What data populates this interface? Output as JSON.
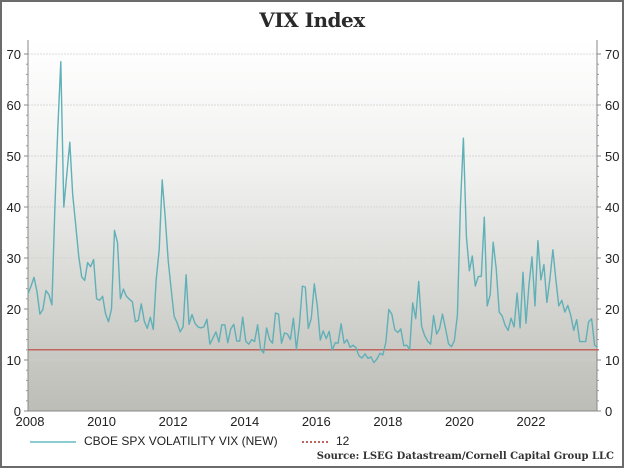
{
  "chart_data": {
    "type": "line",
    "title": "VIX Index",
    "source": "Source: LSEG Datastream/Cornell Capital Group LLC",
    "xlabel": "",
    "ylabel": "",
    "ylim": [
      0,
      70
    ],
    "yticks": [
      0,
      10,
      20,
      30,
      40,
      50,
      60,
      70
    ],
    "xlim": [
      2008,
      2024
    ],
    "xticks": [
      "2008",
      "2010",
      "2012",
      "2014",
      "2016",
      "2018",
      "2020",
      "2022"
    ],
    "grid": true,
    "legend_position": "bottom",
    "series": [
      {
        "name": "CBOE SPX VOLATILITY VIX (NEW)",
        "color": "#5fb0b7",
        "start": "2008-01",
        "frequency": "monthly",
        "values": [
          23.0,
          24.5,
          26.2,
          23.5,
          19.0,
          19.9,
          23.6,
          22.8,
          20.8,
          39.4,
          55.3,
          68.5,
          40.0,
          46.4,
          52.7,
          42.4,
          36.5,
          30.4,
          26.3,
          25.6,
          29.1,
          28.3,
          29.7,
          22.0,
          21.7,
          22.5,
          19.1,
          17.5,
          20.0,
          35.4,
          33.0,
          22.0,
          23.9,
          22.5,
          21.9,
          21.4,
          17.5,
          17.8,
          21.0,
          17.6,
          16.2,
          18.4,
          16.0,
          25.8,
          31.6,
          45.3,
          38.0,
          29.5,
          24.0,
          18.6,
          17.3,
          15.5,
          16.5,
          26.7,
          17.0,
          18.9,
          17.2,
          16.5,
          16.3,
          16.5,
          18.0,
          13.1,
          14.3,
          15.5,
          13.5,
          16.9,
          16.9,
          13.4,
          16.1,
          17.0,
          13.7,
          13.7,
          18.4,
          13.7,
          13.1,
          14.0,
          13.6,
          16.9,
          12.1,
          11.4,
          16.3,
          14.0,
          13.3,
          19.2,
          19.0,
          13.3,
          15.3,
          15.1,
          14.0,
          18.2,
          12.1,
          16.9,
          24.5,
          24.3,
          16.2,
          18.2,
          24.9,
          20.6,
          13.9,
          15.7,
          14.2,
          15.6,
          11.9,
          13.4,
          13.3,
          17.1,
          13.3,
          14.0,
          12.5,
          12.9,
          12.4,
          10.8,
          10.4,
          11.2,
          10.3,
          10.6,
          9.5,
          10.2,
          11.3,
          11.0,
          13.5,
          19.9,
          19.0,
          15.9,
          15.4,
          16.1,
          12.8,
          12.9,
          12.1,
          21.2,
          18.1,
          25.4,
          16.6,
          14.8,
          13.7,
          13.1,
          18.7,
          15.1,
          16.1,
          19.0,
          16.2,
          13.2,
          12.6,
          13.8,
          18.8,
          40.1,
          53.5,
          34.2,
          27.5,
          30.4,
          24.5,
          26.4,
          26.4,
          38.0,
          20.6,
          22.8,
          33.1,
          27.9,
          19.4,
          18.6,
          16.8,
          15.8,
          18.2,
          16.5,
          23.1,
          16.3,
          27.2,
          17.2,
          24.8,
          30.2,
          20.6,
          33.4,
          25.7,
          28.7,
          21.3,
          25.9,
          31.6,
          25.9,
          20.6,
          21.7,
          19.4,
          20.7,
          18.7,
          15.8,
          17.9,
          13.6,
          13.6,
          13.6,
          17.5,
          18.1,
          12.9,
          12.5
        ]
      },
      {
        "name": "12",
        "color": "#c0655e",
        "constant": 12
      }
    ]
  }
}
